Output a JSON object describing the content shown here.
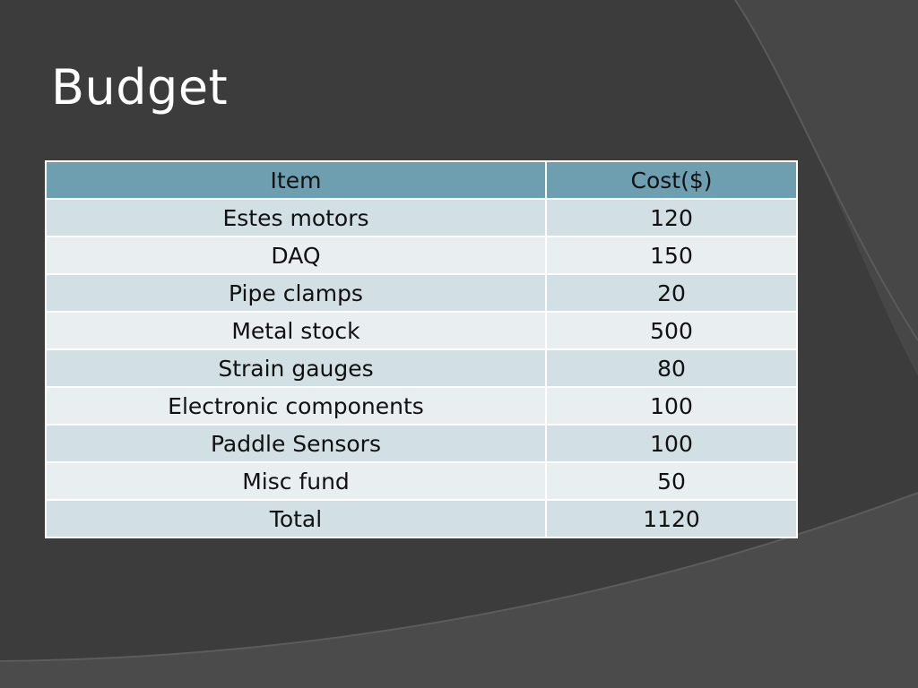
{
  "slide": {
    "title": "Budget"
  },
  "table": {
    "headers": [
      "Item",
      "Cost($)"
    ],
    "rows": [
      {
        "item": "Estes motors",
        "cost": "120"
      },
      {
        "item": "DAQ",
        "cost": "150"
      },
      {
        "item": "Pipe clamps",
        "cost": "20"
      },
      {
        "item": "Metal stock",
        "cost": "500"
      },
      {
        "item": "Strain gauges",
        "cost": "80"
      },
      {
        "item": "Electronic components",
        "cost": "100"
      },
      {
        "item": "Paddle Sensors",
        "cost": "100"
      },
      {
        "item": "Misc fund",
        "cost": "50"
      },
      {
        "item": "Total",
        "cost": "1120"
      }
    ]
  },
  "colors": {
    "background": "#3c3c3c",
    "header_fill": "#6d9fb1",
    "row_band_dark": "#d2dfe4",
    "row_band_light": "#e9eef1",
    "title_text": "#ffffff"
  }
}
